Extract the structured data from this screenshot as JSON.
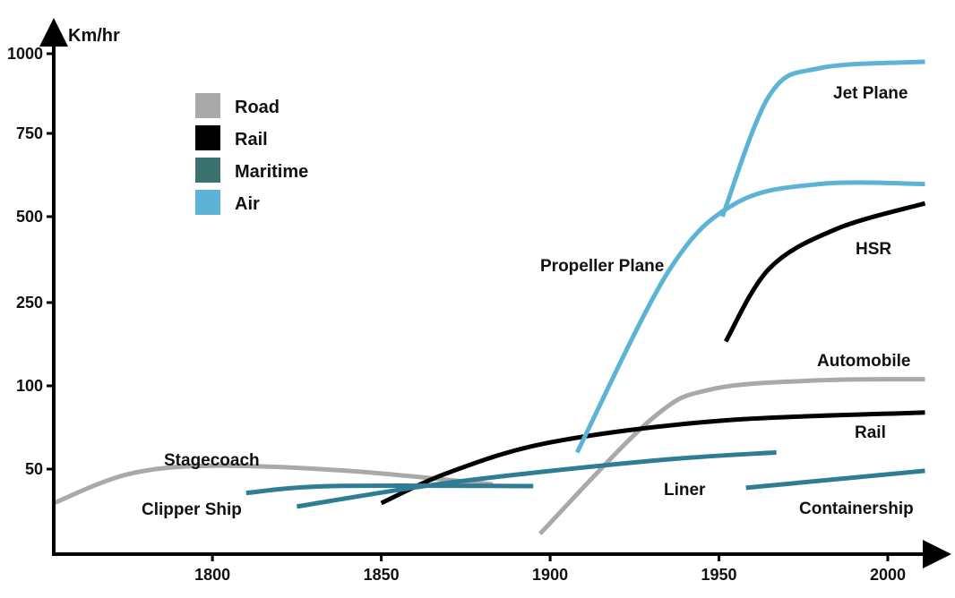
{
  "chart_data": {
    "type": "line",
    "title": "",
    "ylabel": "Km/hr",
    "xlabel": "",
    "x_ticks": [
      "1800",
      "1850",
      "1900",
      "1950",
      "2000"
    ],
    "y_ticks": [
      "50",
      "100",
      "250",
      "500",
      "750",
      "1000"
    ],
    "xlim": [
      1753,
      2013
    ],
    "grid": false,
    "legend_position": "top-left",
    "legend": [
      {
        "label": "Road",
        "color": "#a9a9a9"
      },
      {
        "label": "Rail",
        "color": "#000000"
      },
      {
        "label": "Maritime",
        "color": "#3b7270"
      },
      {
        "label": "Air",
        "color": "#5cb3d6"
      }
    ],
    "series": [
      {
        "name": "Stagecoach",
        "category": "Road",
        "color": "#a9a9a9",
        "points": [
          [
            1753,
            30
          ],
          [
            1775,
            47
          ],
          [
            1800,
            52
          ],
          [
            1840,
            49
          ],
          [
            1883,
            41
          ]
        ]
      },
      {
        "name": "Automobile",
        "category": "Road",
        "color": "#a9a9a9",
        "points": [
          [
            1897,
            12
          ],
          [
            1930,
            80
          ],
          [
            1948,
            98
          ],
          [
            1980,
            110
          ],
          [
            2011,
            112
          ]
        ]
      },
      {
        "name": "Rail",
        "category": "Rail",
        "color": "#000000",
        "points": [
          [
            1850,
            30
          ],
          [
            1870,
            48
          ],
          [
            1900,
            66
          ],
          [
            1950,
            79
          ],
          [
            2011,
            84
          ]
        ]
      },
      {
        "name": "HSR",
        "category": "Rail",
        "color": "#000000",
        "points": [
          [
            1952,
            180
          ],
          [
            1965,
            350
          ],
          [
            1985,
            465
          ],
          [
            2011,
            540
          ]
        ]
      },
      {
        "name": "Clipper Ship",
        "category": "Maritime",
        "color": "#2e7d94",
        "points": [
          [
            1810,
            36
          ],
          [
            1835,
            40
          ],
          [
            1895,
            40
          ]
        ]
      },
      {
        "name": "Liner",
        "category": "Maritime",
        "color": "#2e7d94",
        "points": [
          [
            1825,
            28
          ],
          [
            1870,
            42
          ],
          [
            1930,
            55
          ],
          [
            1967,
            60
          ]
        ]
      },
      {
        "name": "Containership",
        "category": "Maritime",
        "color": "#2e7d94",
        "points": [
          [
            1958,
            39
          ],
          [
            2011,
            49
          ]
        ]
      },
      {
        "name": "Propeller Plane",
        "category": "Air",
        "color": "#5cb3d6",
        "points": [
          [
            1908,
            60
          ],
          [
            1935,
            340
          ],
          [
            1955,
            540
          ],
          [
            1980,
            598
          ],
          [
            2011,
            598
          ]
        ]
      },
      {
        "name": "Jet Plane",
        "category": "Air",
        "color": "#5cb3d6",
        "points": [
          [
            1951,
            500
          ],
          [
            1965,
            870
          ],
          [
            1980,
            955
          ],
          [
            2011,
            975
          ]
        ]
      }
    ]
  }
}
